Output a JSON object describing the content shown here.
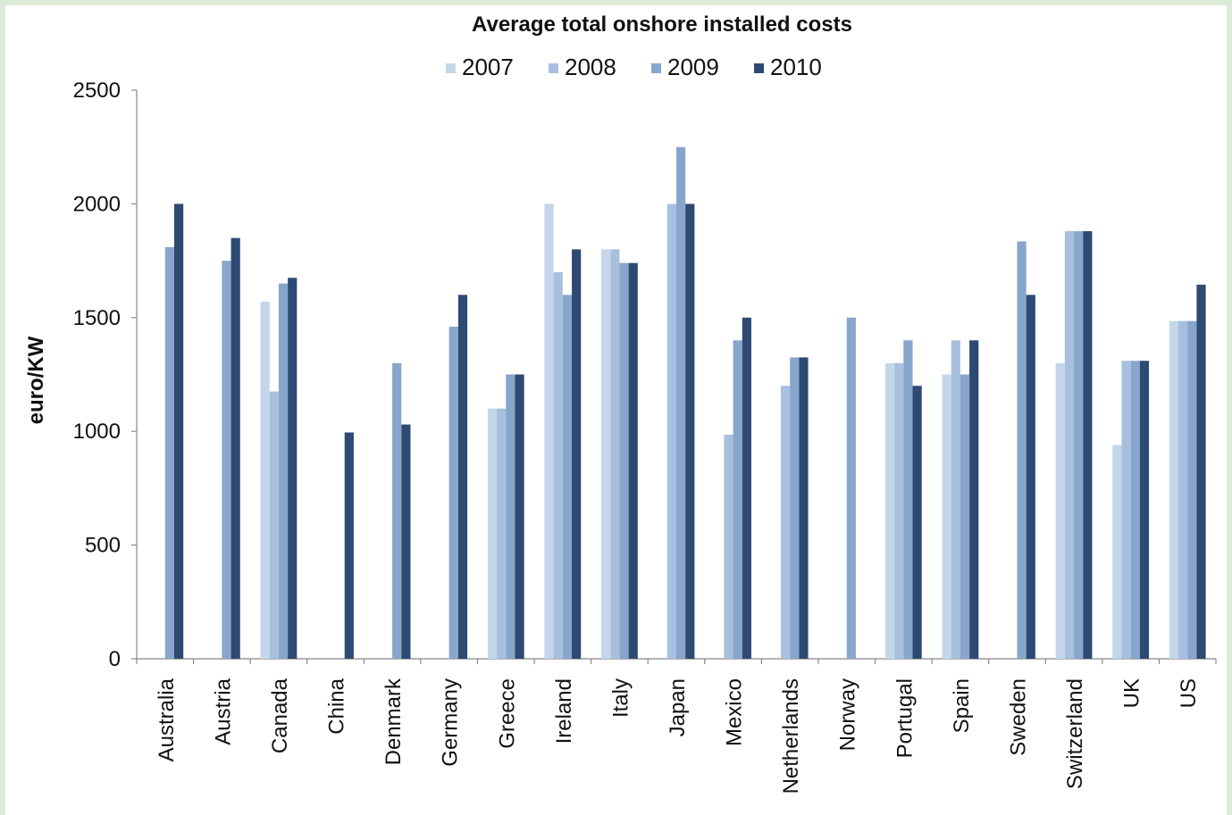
{
  "chart_data": {
    "type": "bar",
    "title": "Average total onshore installed costs",
    "xlabel": "",
    "ylabel": "euro/KW",
    "ylim": [
      0,
      2500
    ],
    "yticks": [
      0,
      500,
      1000,
      1500,
      2000,
      2500
    ],
    "grid": false,
    "legend_position": "top",
    "categories": [
      "Australia",
      "Austria",
      "Canada",
      "China",
      "Denmark",
      "Germany",
      "Greece",
      "Ireland",
      "Italy",
      "Japan",
      "Mexico",
      "Netherlands",
      "Norway",
      "Portugal",
      "Spain",
      "Sweden",
      "Switzerland",
      "UK",
      "US"
    ],
    "series": [
      {
        "name": "2007",
        "color": "#c5d6ea",
        "values": [
          null,
          null,
          1570,
          null,
          null,
          null,
          1100,
          2000,
          1800,
          null,
          null,
          null,
          null,
          1300,
          1250,
          null,
          1300,
          940,
          1485
        ]
      },
      {
        "name": "2008",
        "color": "#a8c0de",
        "values": [
          null,
          null,
          1175,
          null,
          null,
          null,
          1100,
          1700,
          1800,
          2000,
          985,
          1200,
          null,
          1300,
          1400,
          null,
          1880,
          1310,
          1485
        ]
      },
      {
        "name": "2009",
        "color": "#88a5cc",
        "values": [
          1810,
          1750,
          1650,
          null,
          1300,
          1460,
          1250,
          1600,
          1740,
          2250,
          1400,
          1325,
          1500,
          1400,
          1250,
          1835,
          1880,
          1310,
          1485
        ]
      },
      {
        "name": "2010",
        "color": "#2e4a73",
        "values": [
          2000,
          1850,
          1675,
          995,
          1030,
          1600,
          1250,
          1800,
          1740,
          2000,
          1500,
          1325,
          null,
          1200,
          1400,
          1600,
          1880,
          1310,
          1645
        ]
      }
    ]
  }
}
